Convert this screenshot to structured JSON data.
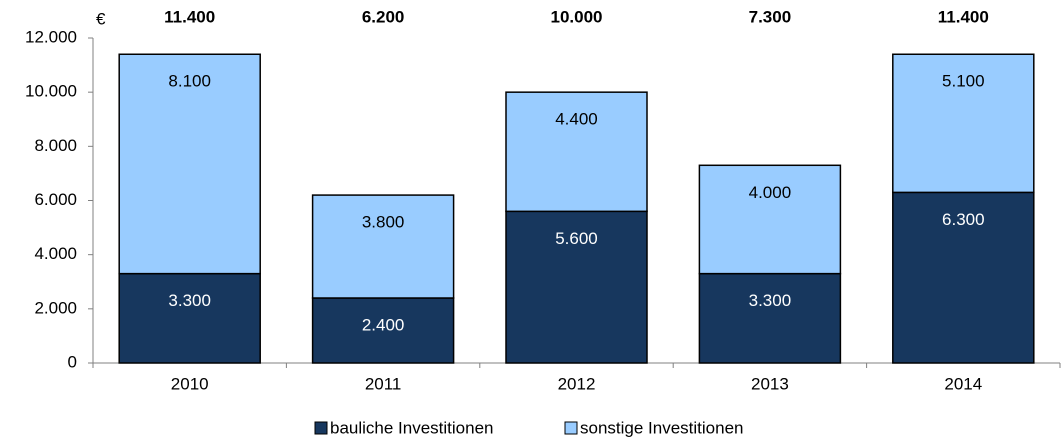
{
  "chart_data": {
    "type": "stacked-bar",
    "ylabel": "€",
    "categories": [
      "2010",
      "2011",
      "2012",
      "2013",
      "2014"
    ],
    "series": [
      {
        "name": "bauliche Investitionen",
        "color": "#17375e",
        "label_color": "#ffffff",
        "values": [
          3300,
          2400,
          5600,
          3300,
          6300
        ],
        "value_labels": [
          "3.300",
          "2.400",
          "5.600",
          "3.300",
          "6.300"
        ]
      },
      {
        "name": "sonstige Investitionen",
        "color": "#99ccff",
        "label_color": "#000000",
        "values": [
          8100,
          3800,
          4400,
          4000,
          5100
        ],
        "value_labels": [
          "8.100",
          "3.800",
          "4.400",
          "4.000",
          "5.100"
        ]
      }
    ],
    "totals": {
      "values": [
        11400,
        6200,
        10000,
        7300,
        11400
      ],
      "value_labels": [
        "11.400",
        "6.200",
        "10.000",
        "7.300",
        "11.400"
      ]
    },
    "ylim": [
      0,
      12000
    ],
    "yticks": [
      0,
      {
        "value": 2000,
        "label": "2.000"
      },
      {
        "value": 4000,
        "label": "4.000"
      },
      {
        "value": 6000,
        "label": "6.000"
      },
      {
        "value": 8000,
        "label": "8.000"
      },
      {
        "value": 10000,
        "label": "10.000"
      },
      {
        "value": 12000,
        "label": "12.000"
      }
    ],
    "grid": false,
    "legend": "bottom"
  }
}
